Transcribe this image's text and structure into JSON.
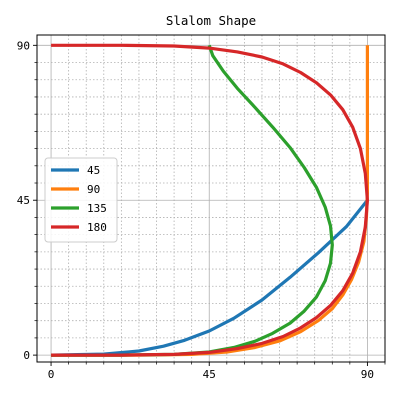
{
  "chart_data": {
    "type": "line",
    "title": "Slalom Shape",
    "xlabel": "",
    "ylabel": "",
    "xlim": [
      -4,
      95
    ],
    "ylim": [
      -2,
      93
    ],
    "xticks": [
      0,
      45,
      90
    ],
    "yticks": [
      0,
      45,
      90
    ],
    "xtick_labels": [
      "0",
      "45",
      "90"
    ],
    "ytick_labels": [
      "0",
      "45",
      "90"
    ],
    "minor_step": 5,
    "grid": true,
    "minor_grid": true,
    "legend_placement": "center-left",
    "series": [
      {
        "name": "45",
        "color": "#1f77b4",
        "x": [
          0,
          15,
          25,
          32,
          38,
          45,
          52,
          60,
          68,
          76,
          84,
          90
        ],
        "y": [
          0,
          0.3,
          1.2,
          2.6,
          4.3,
          7,
          10.7,
          16,
          22.6,
          29.7,
          37.3,
          45
        ]
      },
      {
        "name": "90",
        "color": "#ff7f0e",
        "x": [
          0,
          25,
          40,
          50,
          58,
          65,
          71,
          76,
          80,
          83,
          85.5,
          87.5,
          89,
          89.7,
          90,
          90,
          90
        ],
        "y": [
          0,
          0,
          0.2,
          0.9,
          2.2,
          4.1,
          6.8,
          10,
          13.5,
          17.5,
          22,
          27,
          33,
          40,
          47,
          55,
          90
        ]
      },
      {
        "name": "135",
        "color": "#2ca02c",
        "x": [
          0,
          20,
          35,
          45,
          52,
          58,
          63,
          68,
          72,
          75.5,
          78,
          79.5,
          80,
          79.5,
          78,
          75.5,
          72,
          68,
          63,
          58,
          53,
          49,
          46,
          45
        ],
        "y": [
          0,
          0,
          0.2,
          0.9,
          2.2,
          4,
          6.3,
          9.3,
          12.8,
          16.9,
          21.6,
          26.7,
          32,
          37.5,
          43,
          48.7,
          54.5,
          60.3,
          66.3,
          72,
          77.5,
          82.5,
          87,
          90
        ]
      },
      {
        "name": "180",
        "color": "#d62728",
        "x": [
          0,
          20,
          35,
          45,
          53,
          60,
          66,
          71,
          75.5,
          79.5,
          83,
          85.8,
          88,
          89.4,
          90,
          89.4,
          88,
          85.8,
          83,
          79.5,
          75.5,
          71,
          66,
          60,
          53,
          45,
          35,
          20,
          0
        ],
        "y": [
          0,
          0,
          0.2,
          0.8,
          1.9,
          3.4,
          5.4,
          7.9,
          10.9,
          14.4,
          18.7,
          23.8,
          30,
          37.2,
          45,
          52.8,
          60,
          66.2,
          71.3,
          75.6,
          79.1,
          82.1,
          84.6,
          86.6,
          88.1,
          89.2,
          89.8,
          90,
          90
        ]
      }
    ]
  }
}
